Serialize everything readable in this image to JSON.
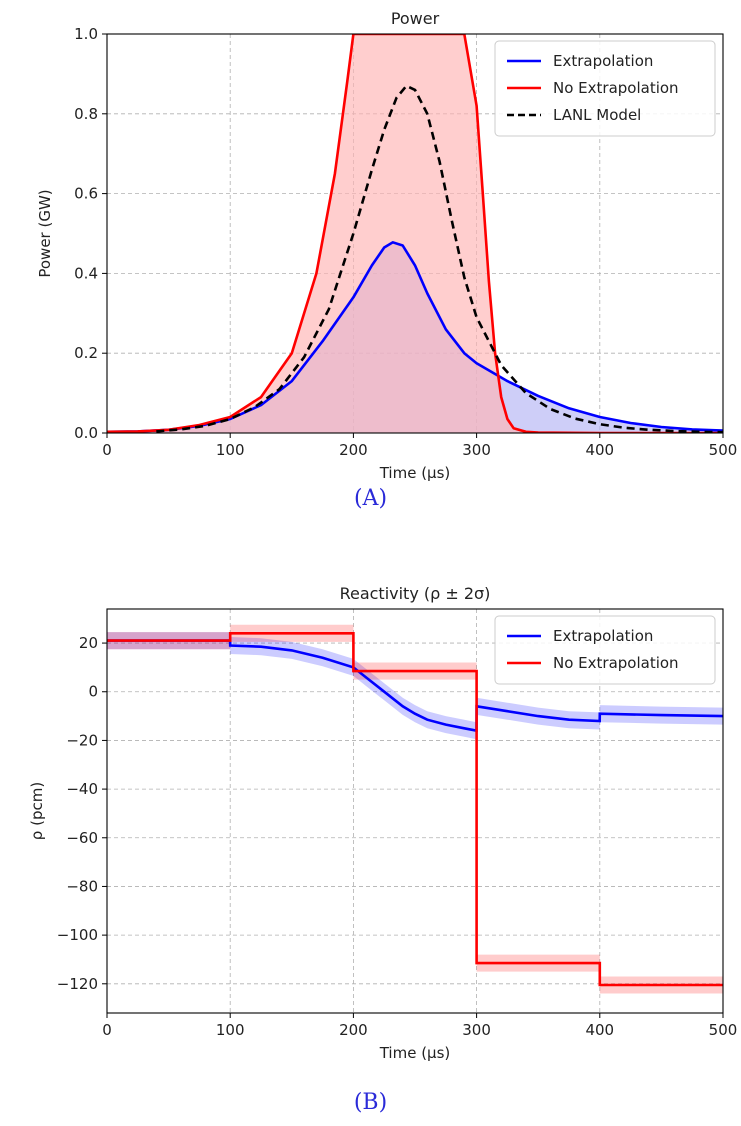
{
  "figure": {
    "caption_a": "(A)",
    "caption_b": "(B)"
  },
  "colors": {
    "extrapolation": "#0000ff",
    "no_extrapolation": "#ff0000",
    "lanl": "#000000",
    "fill_red": "#ffb3b3",
    "fill_blue": "#b3b3f5",
    "grid": "#b0b0b0",
    "caption": "#2a2ad8"
  },
  "chart_data": [
    {
      "type": "line",
      "title": "Power",
      "xlabel": "Time (μs)",
      "ylabel": "Power (GW)",
      "xlim": [
        0,
        500
      ],
      "ylim": [
        0,
        1.0
      ],
      "xticks": [
        0,
        100,
        200,
        300,
        400,
        500
      ],
      "yticks": [
        0.0,
        0.2,
        0.4,
        0.6,
        0.8,
        1.0
      ],
      "ytick_labels": [
        "0.0",
        "0.2",
        "0.4",
        "0.6",
        "0.8",
        "1.0"
      ],
      "grid": true,
      "legend": "top-right",
      "series": [
        {
          "name": "Extrapolation",
          "color": "#0000ff",
          "style": "solid",
          "fill": true,
          "x": [
            0,
            25,
            50,
            75,
            100,
            125,
            150,
            175,
            200,
            215,
            225,
            232,
            240,
            250,
            260,
            275,
            290,
            300,
            325,
            350,
            375,
            400,
            425,
            450,
            475,
            500
          ],
          "y": [
            0.003,
            0.004,
            0.008,
            0.018,
            0.035,
            0.07,
            0.13,
            0.23,
            0.34,
            0.42,
            0.465,
            0.478,
            0.47,
            0.42,
            0.35,
            0.26,
            0.2,
            0.175,
            0.13,
            0.093,
            0.062,
            0.04,
            0.025,
            0.015,
            0.009,
            0.006
          ]
        },
        {
          "name": "No Extrapolation",
          "color": "#ff0000",
          "style": "solid",
          "fill": true,
          "x": [
            0,
            25,
            50,
            75,
            100,
            125,
            150,
            170,
            185,
            195,
            200,
            240,
            290,
            300,
            305,
            310,
            315,
            320,
            325,
            330,
            340,
            350,
            400,
            500
          ],
          "y": [
            0.003,
            0.004,
            0.008,
            0.02,
            0.04,
            0.09,
            0.2,
            0.4,
            0.65,
            0.88,
            1.0,
            1.0,
            1.0,
            0.82,
            0.6,
            0.38,
            0.2,
            0.09,
            0.035,
            0.012,
            0.003,
            0.001,
            0.0,
            0.0
          ]
        },
        {
          "name": "LANL Model",
          "color": "#000000",
          "style": "dashed",
          "fill": false,
          "x": [
            40,
            60,
            80,
            100,
            120,
            140,
            160,
            180,
            200,
            215,
            225,
            235,
            243,
            250,
            260,
            270,
            280,
            290,
            300,
            320,
            340,
            360,
            380,
            400,
            420,
            440,
            460,
            480,
            500
          ],
          "y": [
            0.004,
            0.009,
            0.018,
            0.035,
            0.065,
            0.11,
            0.19,
            0.31,
            0.5,
            0.66,
            0.76,
            0.84,
            0.87,
            0.86,
            0.8,
            0.68,
            0.53,
            0.39,
            0.29,
            0.17,
            0.1,
            0.06,
            0.036,
            0.022,
            0.013,
            0.008,
            0.005,
            0.003,
            0.002
          ]
        }
      ]
    },
    {
      "type": "line",
      "title": "Reactivity (ρ ± 2σ)",
      "xlabel": "Time (μs)",
      "ylabel": "ρ (pcm)",
      "xlim": [
        0,
        500
      ],
      "ylim": [
        -132,
        34
      ],
      "xticks": [
        0,
        100,
        200,
        300,
        400,
        500
      ],
      "yticks": [
        20,
        0,
        -20,
        -40,
        -60,
        -80,
        -100,
        -120
      ],
      "ytick_labels": [
        "20",
        "0",
        "−20",
        "−40",
        "−60",
        "−80",
        "−100",
        "−120"
      ],
      "grid": true,
      "legend": "top-right",
      "band": "±2σ",
      "series": [
        {
          "name": "Extrapolation",
          "color": "#0000ff",
          "band_width": 3.5,
          "x": [
            0,
            99.9,
            100,
            125,
            150,
            175,
            200,
            210,
            225,
            240,
            250,
            260,
            275,
            290,
            299.9,
            300,
            325,
            350,
            375,
            399.9,
            400,
            425,
            450,
            475,
            500
          ],
          "y": [
            21,
            21,
            19,
            18.5,
            17,
            14,
            10,
            6,
            0,
            -6,
            -9,
            -11.5,
            -13.5,
            -15,
            -16,
            -6,
            -8,
            -10,
            -11.5,
            -12,
            -9,
            -9.3,
            -9.6,
            -9.8,
            -10
          ]
        },
        {
          "name": "No Extrapolation",
          "color": "#ff0000",
          "band_width": 3.5,
          "x": [
            0,
            100,
            100,
            200,
            200,
            300,
            300,
            400,
            400,
            500
          ],
          "y": [
            21,
            21,
            24,
            24,
            8.5,
            8.5,
            -111.5,
            -111.5,
            -120.5,
            -120.5
          ]
        }
      ]
    }
  ]
}
